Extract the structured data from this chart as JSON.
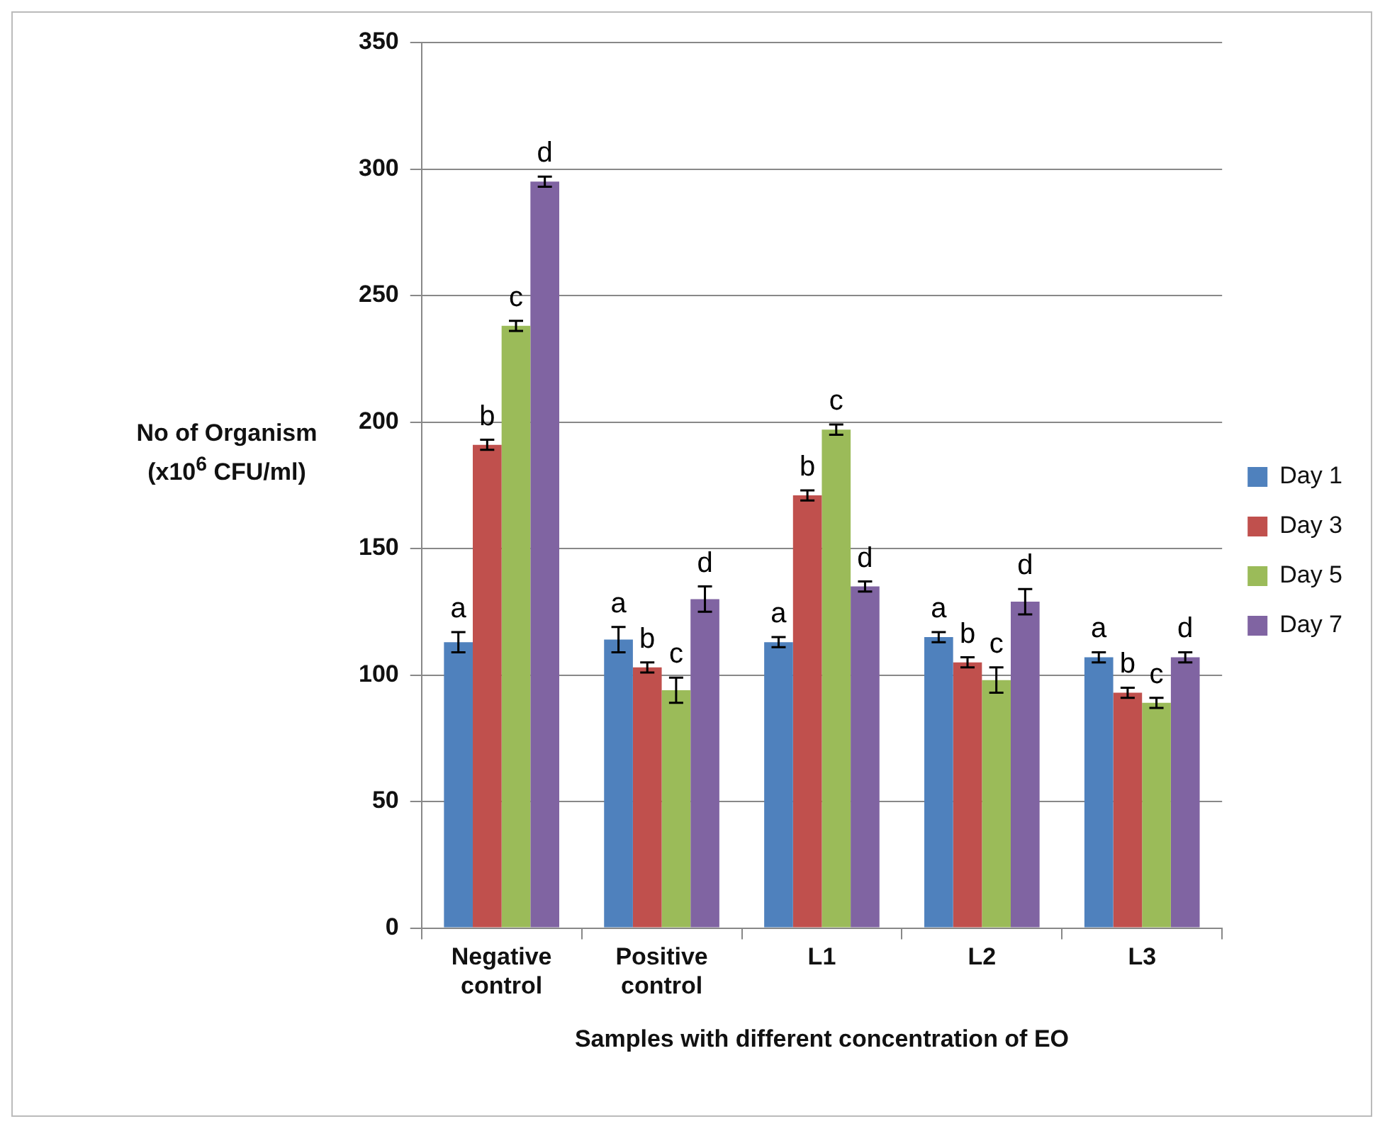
{
  "chart_data": {
    "type": "bar",
    "xlabel": "Samples with different concentration of EO",
    "ylabel": "No of Organism (x10$^{6}$ CFU/ml)",
    "categories": [
      "Negative control",
      "Positive control",
      "L1",
      "L2",
      "L3"
    ],
    "series": [
      {
        "name": "Day 1",
        "color": "#4f81bd",
        "values": [
          113,
          114,
          113,
          115,
          107
        ],
        "errors": [
          4,
          5,
          2,
          2,
          2
        ],
        "value_labels": [
          "a",
          "a",
          "a",
          "a",
          "a"
        ]
      },
      {
        "name": "Day 3",
        "color": "#c0504d",
        "values": [
          191,
          103,
          171,
          105,
          93
        ],
        "errors": [
          2,
          2,
          2,
          2,
          2
        ],
        "value_labels": [
          "b",
          "b",
          "b",
          "b",
          "b"
        ]
      },
      {
        "name": "Day 5",
        "color": "#9bbb59",
        "values": [
          238,
          94,
          197,
          98,
          89
        ],
        "errors": [
          2,
          5,
          2,
          5,
          2
        ],
        "value_labels": [
          "c",
          "c",
          "c",
          "c",
          "c"
        ]
      },
      {
        "name": "Day 7",
        "color": "#8064a2",
        "values": [
          295,
          130,
          135,
          129,
          107
        ],
        "errors": [
          2,
          5,
          2,
          5,
          2
        ],
        "value_labels": [
          "d",
          "d",
          "d",
          "d",
          "d"
        ]
      }
    ],
    "ylim": [
      0,
      350
    ],
    "yticks": [
      0,
      50,
      100,
      150,
      200,
      250,
      300,
      350
    ],
    "grid": "y",
    "legend": "right"
  }
}
